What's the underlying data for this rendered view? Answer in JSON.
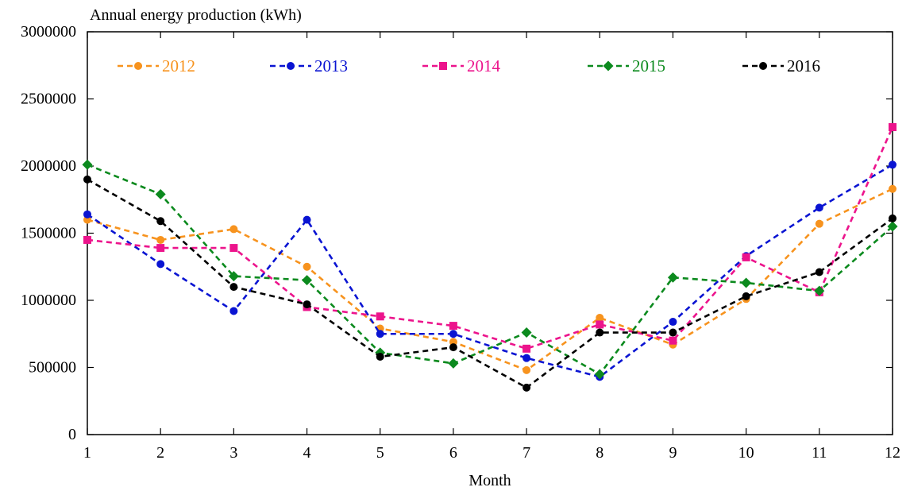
{
  "chart_data": {
    "type": "line",
    "title": "",
    "ylabel": "Annual energy production (kWh)",
    "xlabel": "Month",
    "x": [
      1,
      2,
      3,
      4,
      5,
      6,
      7,
      8,
      9,
      10,
      11,
      12
    ],
    "xlim": [
      1,
      12
    ],
    "ylim": [
      0,
      3000000
    ],
    "yticks": [
      0,
      500000,
      1000000,
      1500000,
      2000000,
      2500000,
      3000000
    ],
    "grid": false,
    "legend_position": "top",
    "series": [
      {
        "name": "2012",
        "color": "#F7931E",
        "marker": "circle",
        "values": [
          1600000,
          1450000,
          1530000,
          1250000,
          790000,
          690000,
          480000,
          870000,
          670000,
          1010000,
          1570000,
          1830000
        ]
      },
      {
        "name": "2013",
        "color": "#0A14D2",
        "marker": "circle",
        "values": [
          1640000,
          1270000,
          920000,
          1600000,
          750000,
          750000,
          570000,
          430000,
          840000,
          1330000,
          1690000,
          2010000
        ]
      },
      {
        "name": "2014",
        "color": "#EC148C",
        "marker": "square",
        "values": [
          1450000,
          1390000,
          1390000,
          950000,
          880000,
          810000,
          640000,
          820000,
          700000,
          1320000,
          1060000,
          2290000
        ]
      },
      {
        "name": "2015",
        "color": "#0C8A1E",
        "marker": "diamond",
        "values": [
          2010000,
          1790000,
          1180000,
          1150000,
          610000,
          530000,
          760000,
          450000,
          1170000,
          1130000,
          1070000,
          1550000
        ]
      },
      {
        "name": "2016",
        "color": "#000000",
        "marker": "circle",
        "values": [
          1900000,
          1590000,
          1100000,
          970000,
          580000,
          650000,
          350000,
          760000,
          760000,
          1030000,
          1210000,
          1610000
        ]
      }
    ]
  }
}
